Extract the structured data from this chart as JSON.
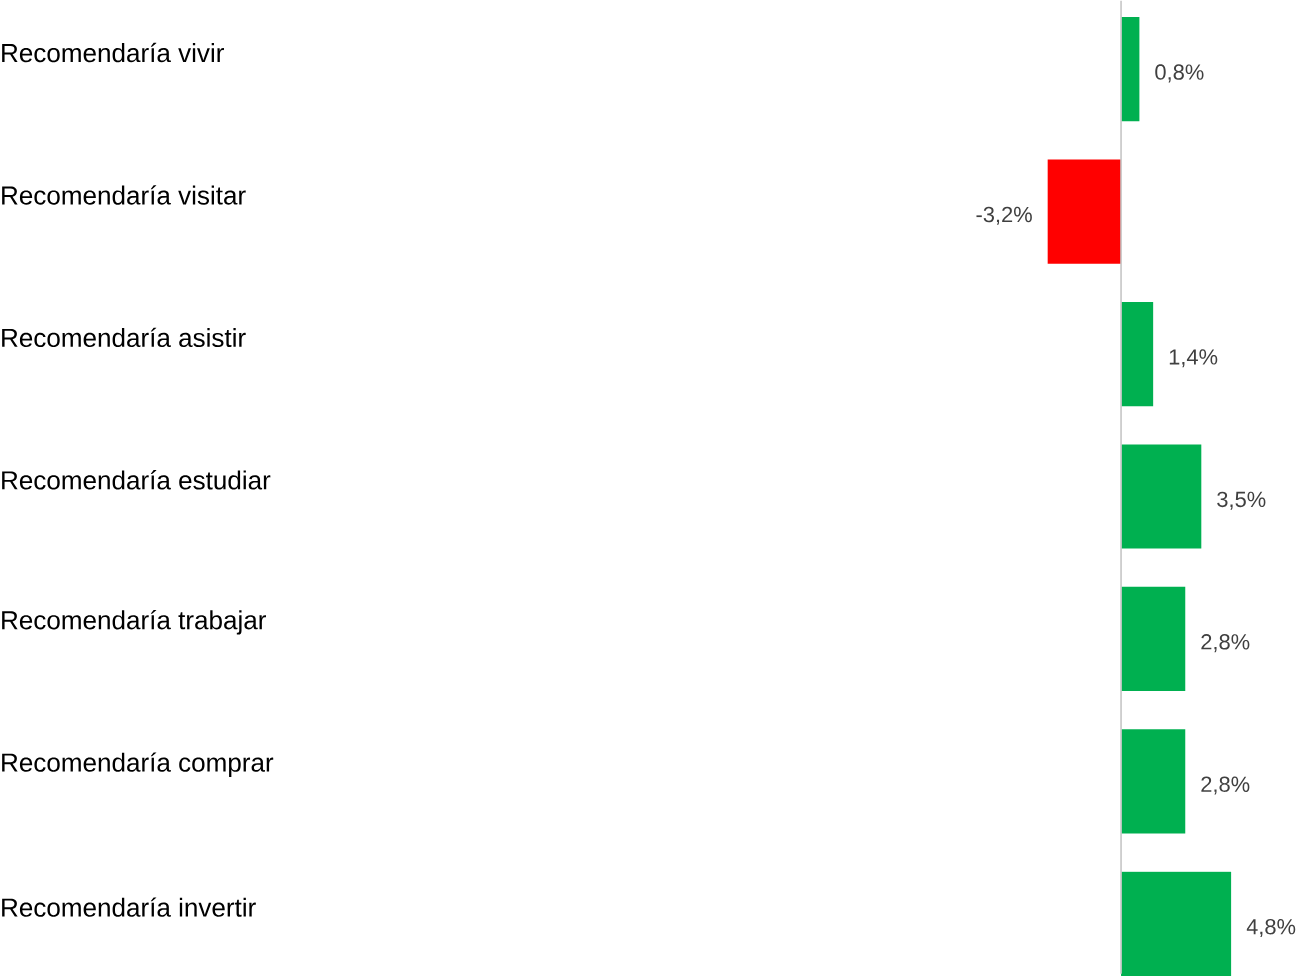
{
  "chart_data": {
    "type": "bar",
    "orientation": "horizontal",
    "categories": [
      "Recomendaría vivir",
      "Recomendaría visitar",
      "Recomendaría asistir",
      "Recomendaría estudiar",
      "Recomendaría trabajar",
      "Recomendaría comprar",
      "Recomendaría invertir"
    ],
    "values": [
      0.8,
      -3.2,
      1.4,
      3.5,
      2.8,
      2.8,
      4.8
    ],
    "colors": [
      "#00b050",
      "#ff0000",
      "#00b050",
      "#00b050",
      "#00b050",
      "#00b050",
      "#00b050"
    ],
    "value_labels": [
      "0,8%",
      "-3,2%",
      "1,4%",
      "3,5%",
      "2,8%",
      "2,8%",
      "4,8%"
    ]
  }
}
